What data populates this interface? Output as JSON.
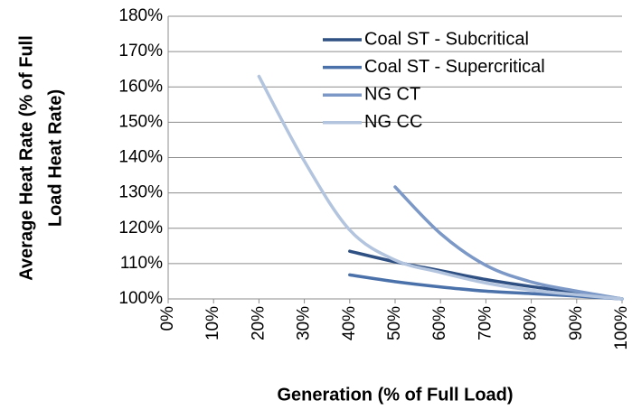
{
  "chart_data": {
    "type": "line",
    "xlabel": "Generation (% of Full Load)",
    "ylabel": [
      "Average Heat Rate (% of Full",
      "Load Heat Rate)"
    ],
    "xlim": [
      0,
      100
    ],
    "xticks": [
      {
        "value": 0,
        "label": "0%"
      },
      {
        "value": 10,
        "label": "10%"
      },
      {
        "value": 20,
        "label": "20%"
      },
      {
        "value": 30,
        "label": "30%"
      },
      {
        "value": 40,
        "label": "40%"
      },
      {
        "value": 50,
        "label": "50%"
      },
      {
        "value": 60,
        "label": "60%"
      },
      {
        "value": 70,
        "label": "70%"
      },
      {
        "value": 80,
        "label": "80%"
      },
      {
        "value": 90,
        "label": "90%"
      },
      {
        "value": 100,
        "label": "100%"
      }
    ],
    "ylim": [
      100,
      180
    ],
    "yticks": [
      {
        "value": 100,
        "label": "100%"
      },
      {
        "value": 110,
        "label": "110%"
      },
      {
        "value": 120,
        "label": "120%"
      },
      {
        "value": 130,
        "label": "130%"
      },
      {
        "value": 140,
        "label": "140%"
      },
      {
        "value": 150,
        "label": "150%"
      },
      {
        "value": 160,
        "label": "160%"
      },
      {
        "value": 170,
        "label": "170%"
      },
      {
        "value": 180,
        "label": "180%"
      }
    ],
    "grid": true,
    "legend": "top-right",
    "series": [
      {
        "name": "Coal ST - Subcritical",
        "color": "#2f5082",
        "x": [
          40,
          50,
          60,
          70,
          80,
          90,
          100
        ],
        "values": [
          113.5,
          110.5,
          108,
          105.5,
          103.5,
          101.8,
          100
        ]
      },
      {
        "name": "Coal ST - Supercritical",
        "color": "#4a71a9",
        "x": [
          40,
          50,
          60,
          70,
          80,
          90,
          100
        ],
        "values": [
          106.8,
          104.9,
          103.4,
          102.2,
          101.5,
          100.8,
          100
        ]
      },
      {
        "name": "NG CT",
        "color": "#7b98c6",
        "x": [
          50,
          60,
          70,
          80,
          90,
          100
        ],
        "values": [
          131.7,
          118.5,
          109.5,
          104.8,
          102.2,
          100
        ]
      },
      {
        "name": "NG CC",
        "color": "#b3c4de",
        "x": [
          20,
          30,
          40,
          50,
          60,
          70,
          80,
          90,
          100
        ],
        "values": [
          163,
          139,
          119.5,
          111,
          107.5,
          104.5,
          102.5,
          101.2,
          100
        ]
      }
    ]
  }
}
